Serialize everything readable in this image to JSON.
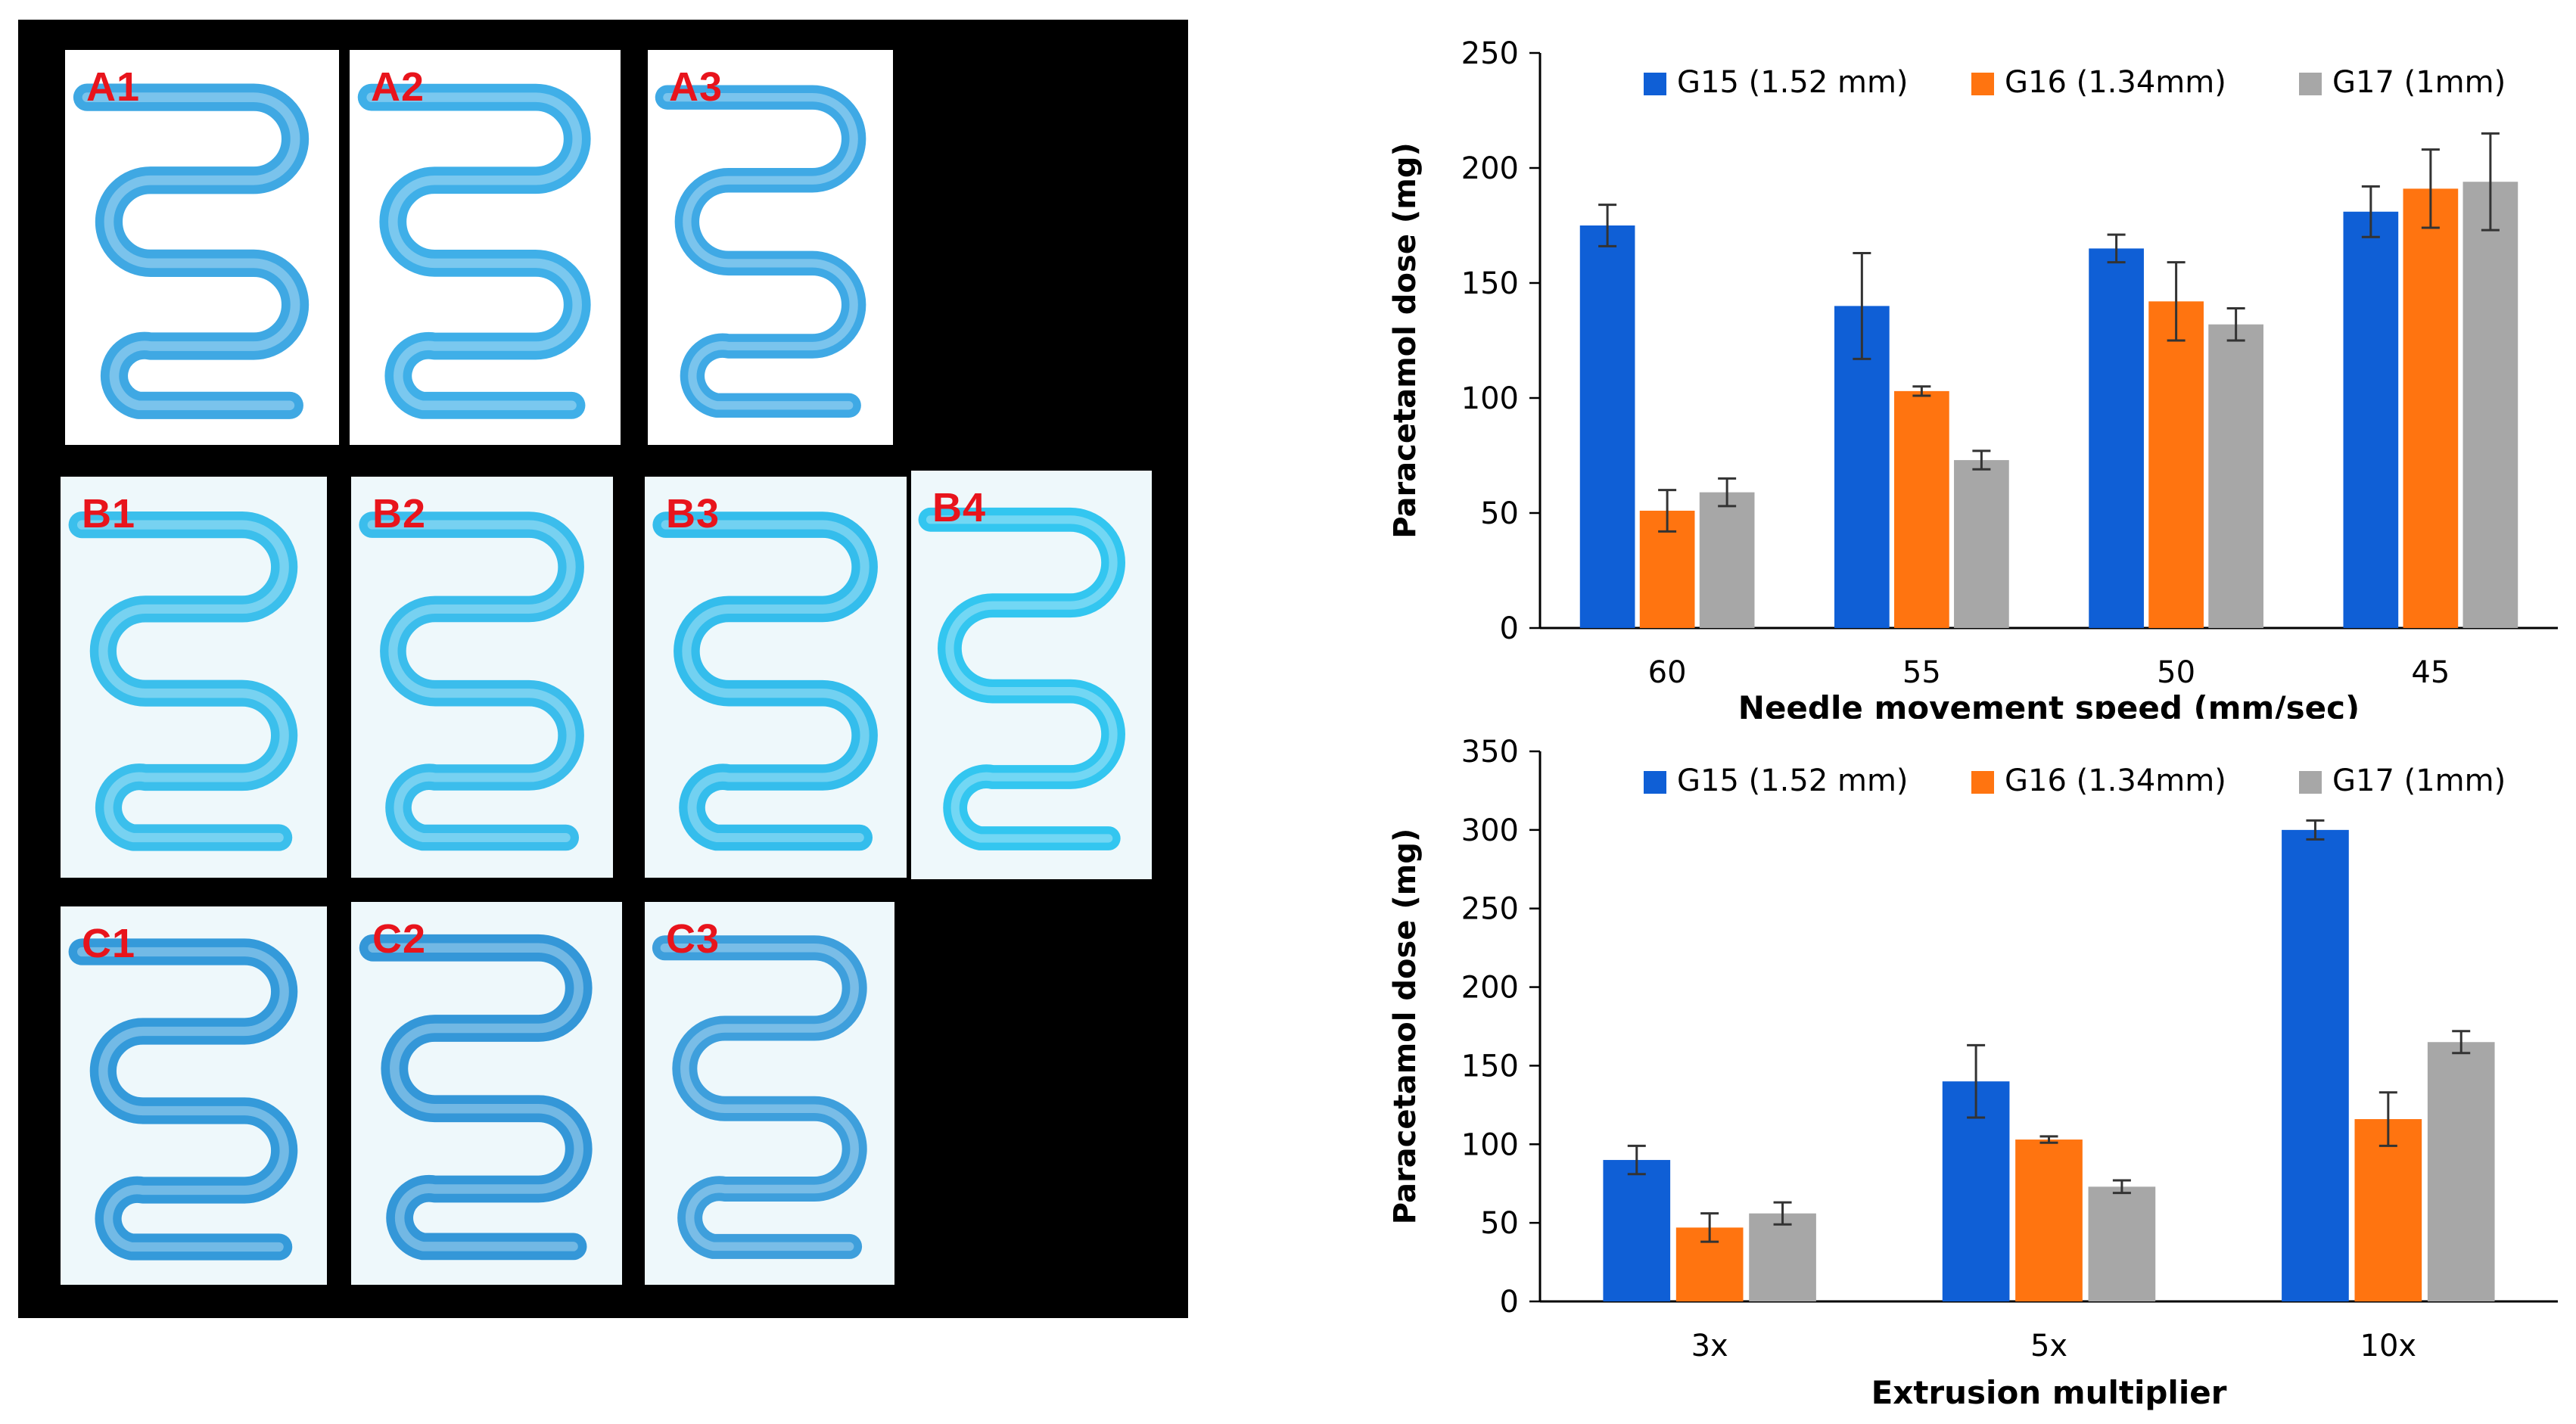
{
  "photos": {
    "samples": [
      {
        "label": "A1",
        "color": "#2a9ee0"
      },
      {
        "label": "A2",
        "color": "#2aa6e6"
      },
      {
        "label": "A3",
        "color": "#2aa0e2"
      },
      {
        "label": "B1",
        "color": "#27b8ea"
      },
      {
        "label": "B2",
        "color": "#27b6ea"
      },
      {
        "label": "B3",
        "color": "#1fb6ea"
      },
      {
        "label": "B4",
        "color": "#1ec0ee"
      },
      {
        "label": "C1",
        "color": "#1f8fd6"
      },
      {
        "label": "C2",
        "color": "#1f8cd4"
      },
      {
        "label": "C3",
        "color": "#2a95d8"
      }
    ]
  },
  "chart_data": [
    {
      "type": "bar",
      "title": "",
      "xlabel": "Needle movement speed (mm/sec)",
      "ylabel": "Paracetamol dose (mg)",
      "ylim": [
        0,
        250
      ],
      "yticks": [
        "0",
        "50",
        "100",
        "150",
        "200",
        "250"
      ],
      "categories": [
        "60",
        "55",
        "50",
        "45"
      ],
      "legend_position": "top",
      "series": [
        {
          "name": "G15 (1.52 mm)",
          "color": "#0f5fd6",
          "values": [
            175,
            140,
            165,
            181
          ],
          "errors": [
            9,
            23,
            6,
            11
          ]
        },
        {
          "name": "G16 (1.34mm)",
          "color": "#ff7410",
          "values": [
            51,
            103,
            142,
            191
          ],
          "errors": [
            9,
            2,
            17,
            17
          ]
        },
        {
          "name": "G17 (1mm)",
          "color": "#a7a7a7",
          "values": [
            59,
            73,
            132,
            194
          ],
          "errors": [
            6,
            4,
            7,
            21
          ]
        }
      ]
    },
    {
      "type": "bar",
      "title": "",
      "xlabel": "Extrusion multiplier",
      "ylabel": "Paracetamol dose (mg)",
      "ylim": [
        0,
        350
      ],
      "yticks": [
        "0",
        "50",
        "100",
        "150",
        "200",
        "250",
        "300",
        "350"
      ],
      "categories": [
        "3x",
        "5x",
        "10x"
      ],
      "legend_position": "top",
      "series": [
        {
          "name": "G15 (1.52 mm)",
          "color": "#0f5fd6",
          "values": [
            90,
            140,
            300
          ],
          "errors": [
            9,
            23,
            6
          ]
        },
        {
          "name": "G16 (1.34mm)",
          "color": "#ff7410",
          "values": [
            47,
            103,
            116
          ],
          "errors": [
            9,
            2,
            17
          ]
        },
        {
          "name": "G17 (1mm)",
          "color": "#a7a7a7",
          "values": [
            56,
            73,
            165
          ],
          "errors": [
            7,
            4,
            7
          ]
        }
      ]
    }
  ]
}
